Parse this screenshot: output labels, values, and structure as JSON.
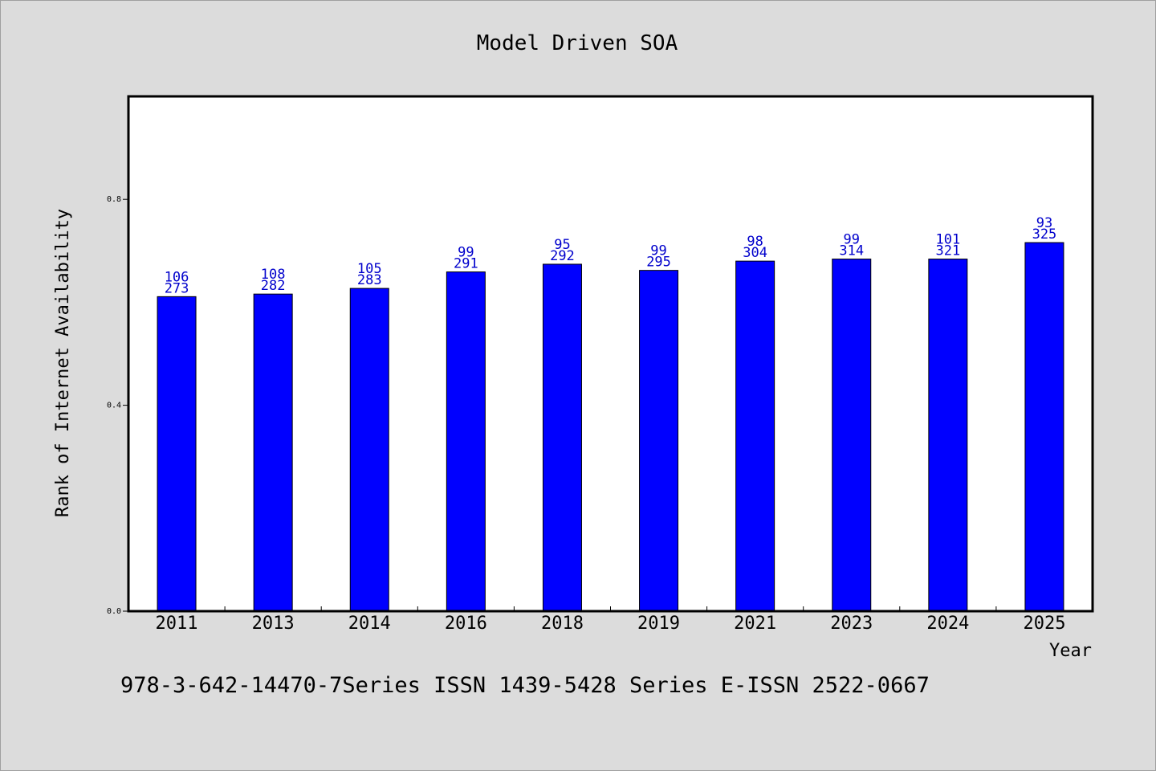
{
  "chart_data": {
    "type": "bar",
    "title": "Model Driven SOA",
    "xlabel": "Year",
    "ylabel": "Rank of Internet Availability",
    "footer": "978-3-642-14470-7Series ISSN 1439-5428 Series E-ISSN 2522-0667",
    "categories": [
      "2011",
      "2013",
      "2014",
      "2016",
      "2018",
      "2019",
      "2021",
      "2023",
      "2024",
      "2025"
    ],
    "values": [
      0.611,
      0.616,
      0.627,
      0.659,
      0.674,
      0.662,
      0.68,
      0.684,
      0.684,
      0.716
    ],
    "labels_top": [
      "106",
      "108",
      "105",
      "99",
      "95",
      "99",
      "98",
      "99",
      "101",
      "93"
    ],
    "labels_bottom": [
      "273",
      "282",
      "283",
      "291",
      "292",
      "295",
      "304",
      "314",
      "321",
      "325"
    ],
    "ylim": [
      0.0,
      1.0
    ],
    "yticks": [
      0.0,
      0.4,
      0.8
    ],
    "ytick_labels": [
      "0.0",
      "0.4",
      "0.8"
    ],
    "grid": false,
    "bar_color": "#0000ff",
    "label_color": "#0000cc",
    "plot_background": "#ffffff",
    "page_background": "#dcdcdc"
  }
}
